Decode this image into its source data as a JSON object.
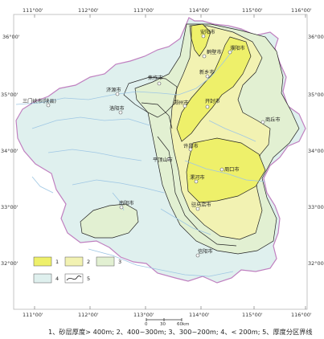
{
  "colors": {
    "province_border": "#c080c0",
    "province_fill": "#eef4f4",
    "river": "#9fc7e4",
    "class_1_gt400": "#eef06a",
    "class_2_400_300": "#f2f2b2",
    "class_3_300_200": "#e2f0d2",
    "class_4_lt200": "#dff0ee",
    "boundary_line": "#222222"
  },
  "grid": {
    "top_longitudes": [
      "111°00'",
      "112°00'",
      "113°00'",
      "114°00'",
      "115°00'",
      "116°00'"
    ],
    "bottom_longitudes": [
      "111°00'",
      "112°00'",
      "113°00'",
      "114°00'",
      "115°00'",
      "116°00'"
    ],
    "left_latitudes": [
      "36°00'",
      "35°00'",
      "34°00'",
      "33°00'",
      "32°00'"
    ],
    "right_latitudes": [
      "36°00'",
      "35°00'",
      "34°00'",
      "33°00'",
      "32°00'"
    ]
  },
  "cities": [
    "安阳市",
    "鹤壁市",
    "濮阳市",
    "新乡市",
    "焦作市",
    "济源市",
    "三门峡市(陕县)",
    "洛阳市",
    "郑州市",
    "开封市",
    "商丘市",
    "许昌市",
    "平顶山市",
    "周口市",
    "漯河市",
    "南阳市",
    "驻马店市",
    "信阳市"
  ],
  "legend": {
    "items": [
      {
        "label": "1",
        "class": "class_1_gt400"
      },
      {
        "label": "2",
        "class": "class_2_400_300"
      },
      {
        "label": "3",
        "class": "class_3_300_200"
      },
      {
        "label": "4",
        "class": "class_4_lt200"
      },
      {
        "label": "5",
        "class": "boundary_line"
      }
    ]
  },
  "scale": {
    "ticks": [
      "0",
      "30",
      "60km"
    ]
  },
  "caption": "1、砂层厚度> 400m; 2、400~300m; 3、300~200m; 4、< 200m; 5、厚度分区界线"
}
